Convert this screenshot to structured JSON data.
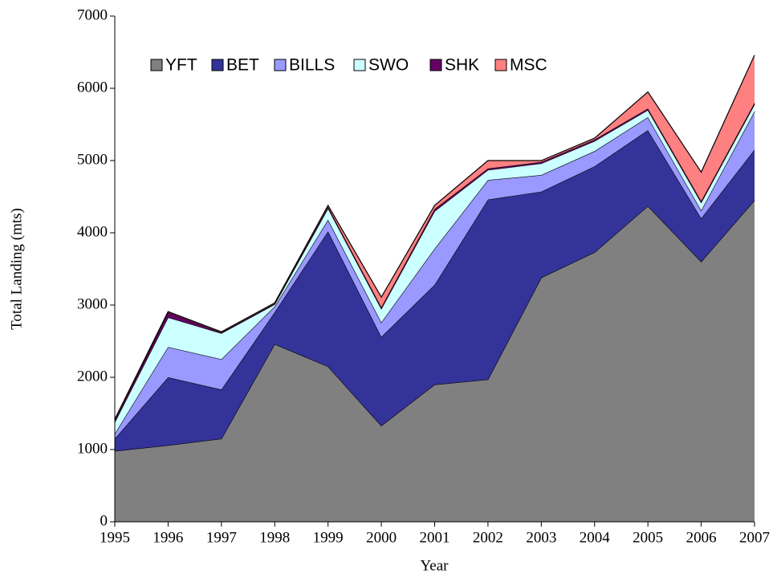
{
  "chart_data": {
    "type": "stacked-area",
    "x_label": "Year",
    "y_label": "Total Landing (mts)",
    "categories": [
      "1995",
      "1996",
      "1997",
      "1998",
      "1999",
      "2000",
      "2001",
      "2002",
      "2003",
      "2004",
      "2005",
      "2006",
      "2007"
    ],
    "series": [
      {
        "name": "YFT",
        "color": "#808080",
        "values": [
          980,
          1060,
          1150,
          2460,
          2150,
          1330,
          1900,
          1970,
          3380,
          3730,
          4370,
          3600,
          4450
        ]
      },
      {
        "name": "BET",
        "color": "#333399",
        "values": [
          170,
          940,
          680,
          440,
          1870,
          1230,
          1380,
          2490,
          1190,
          1190,
          1050,
          600,
          700
        ]
      },
      {
        "name": "BILLS",
        "color": "#9999ff",
        "values": [
          70,
          420,
          420,
          80,
          160,
          200,
          500,
          270,
          230,
          210,
          180,
          110,
          530
        ]
      },
      {
        "name": "SWO",
        "color": "#ccffff",
        "values": [
          160,
          410,
          360,
          30,
          160,
          190,
          520,
          140,
          160,
          140,
          100,
          110,
          100
        ]
      },
      {
        "name": "SHK",
        "color": "#660066",
        "values": [
          20,
          70,
          10,
          10,
          20,
          20,
          30,
          20,
          20,
          20,
          20,
          20,
          20
        ]
      },
      {
        "name": "MSC",
        "color": "#ff8080",
        "values": [
          20,
          10,
          10,
          10,
          20,
          140,
          50,
          110,
          20,
          20,
          230,
          400,
          660
        ]
      }
    ],
    "ylim": [
      0,
      7000
    ],
    "yticks": [
      0,
      1000,
      2000,
      3000,
      4000,
      5000,
      6000,
      7000
    ]
  }
}
